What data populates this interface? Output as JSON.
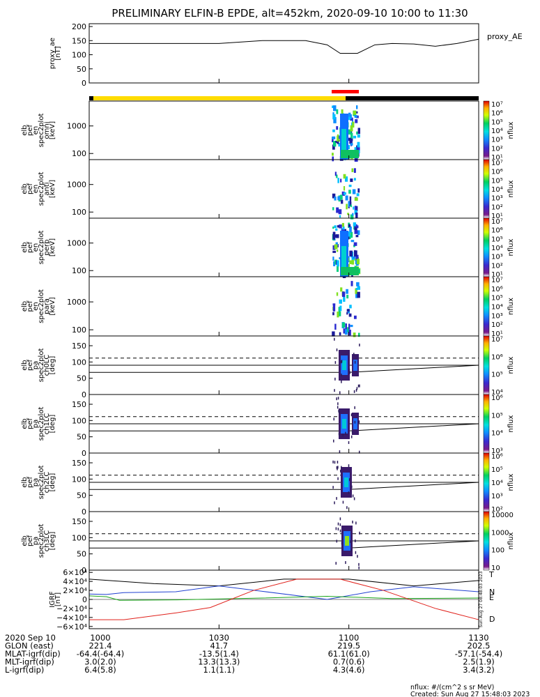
{
  "title": "PRELIMINARY ELFIN-B EPDE, alt=452km, 2020-09-10 10:00 to 11:30",
  "chart_data": [
    {
      "type": "line",
      "id": "proxy_ae",
      "ylabel_lines": [
        "proxy_ae",
        "[nT]"
      ],
      "yticks": [
        "0",
        "50",
        "100",
        "150",
        "200"
      ],
      "ylim": [
        0,
        210
      ],
      "series": [
        {
          "name": "proxy_AE",
          "color": "#000000",
          "x": [
            0,
            10,
            20,
            30,
            40,
            50,
            55,
            58,
            62,
            66,
            70,
            75,
            80,
            85,
            90
          ],
          "y": [
            140,
            140,
            140,
            140,
            150,
            150,
            135,
            105,
            105,
            135,
            140,
            138,
            130,
            140,
            155
          ]
        }
      ]
    },
    {
      "type": "heatmap",
      "id": "omni",
      "ylabel_lines": [
        "elb",
        "pef",
        "en",
        "spec2plot",
        "omni",
        "[keV]"
      ],
      "yticks": [
        "100",
        "1000"
      ],
      "colorbar": {
        "labels": [
          "10¹",
          "10²",
          "10³",
          "10⁴",
          "10⁵",
          "10⁶",
          "10⁷"
        ],
        "unit": "nflux"
      }
    },
    {
      "type": "heatmap",
      "id": "anti",
      "ylabel_lines": [
        "elb",
        "pef",
        "en",
        "spec2plot",
        "anti",
        "[keV]"
      ],
      "yticks": [
        "100",
        "1000"
      ],
      "colorbar": {
        "labels": [
          "10¹",
          "10²",
          "10³",
          "10⁴",
          "10⁵",
          "10⁶",
          "10⁷"
        ],
        "unit": "nflux"
      }
    },
    {
      "type": "heatmap",
      "id": "perp",
      "ylabel_lines": [
        "elb",
        "pef",
        "en",
        "spec2plot",
        "perp",
        "[keV]"
      ],
      "yticks": [
        "100",
        "1000"
      ],
      "colorbar": {
        "labels": [
          "10¹",
          "10²",
          "10³",
          "10⁴",
          "10⁵",
          "10⁶",
          "10⁷"
        ],
        "unit": "nflux"
      }
    },
    {
      "type": "heatmap",
      "id": "para",
      "ylabel_lines": [
        "elb",
        "pef",
        "en",
        "spec2plot",
        "para",
        "[keV]"
      ],
      "yticks": [
        "100",
        "1000"
      ],
      "colorbar": {
        "labels": [
          "10¹",
          "10²",
          "10³",
          "10⁴",
          "10⁵",
          "10⁶",
          "10⁷"
        ],
        "unit": "nflux"
      }
    },
    {
      "type": "heatmap",
      "id": "ch0LC",
      "ylabel_lines": [
        "elb",
        "pef",
        "pa",
        "spec2plot",
        "ch0LC",
        "[deg]"
      ],
      "yticks": [
        "0",
        "50",
        "100",
        "150"
      ],
      "colorbar": {
        "labels": [
          "10⁴",
          "10⁵",
          "10⁶",
          "10⁷"
        ],
        "unit": "nflux"
      }
    },
    {
      "type": "heatmap",
      "id": "ch1LC",
      "ylabel_lines": [
        "elb",
        "pef",
        "pa",
        "spec2plot",
        "ch1LC",
        "[deg]"
      ],
      "yticks": [
        "0",
        "50",
        "100",
        "150"
      ],
      "colorbar": {
        "labels": [
          "10³",
          "10⁴",
          "10⁵",
          "10⁶"
        ],
        "unit": "nflux"
      }
    },
    {
      "type": "heatmap",
      "id": "ch2LC",
      "ylabel_lines": [
        "elb",
        "pef",
        "pa",
        "spec2plot",
        "ch2LC",
        "[deg]"
      ],
      "yticks": [
        "0",
        "50",
        "100",
        "150"
      ],
      "colorbar": {
        "labels": [
          "10²",
          "10³",
          "10⁴",
          "10⁵",
          "10⁶"
        ],
        "unit": "nflux"
      }
    },
    {
      "type": "heatmap",
      "id": "ch3LC",
      "ylabel_lines": [
        "elb",
        "pef",
        "pa",
        "spec2plot",
        "ch3LC",
        "[deg]"
      ],
      "yticks": [
        "0",
        "50",
        "100",
        "150"
      ],
      "colorbar": {
        "labels": [
          "10",
          "100",
          "1000",
          "10000"
        ],
        "unit": "nflux"
      }
    },
    {
      "type": "line",
      "id": "igrf",
      "ylabel_lines": [
        "IGRF",
        "[nT]"
      ],
      "yticks": [
        "−6×10⁴",
        "−4×10⁴",
        "−2×10⁴",
        "0",
        "2×10⁴",
        "4×10⁴",
        "6×10⁴"
      ],
      "side_note": "Sun Aug 27 08:48:03 2023",
      "series": [
        {
          "name": "T",
          "color": "#000000"
        },
        {
          "name": "N",
          "color": "#1f3fd0"
        },
        {
          "name": "E",
          "color": "#1aa51a"
        },
        {
          "name": "D",
          "color": "#e0201a"
        }
      ]
    }
  ],
  "xaxis": {
    "tick_labels": [
      "1000",
      "1030",
      "1100",
      "1130"
    ],
    "rows": [
      {
        "label": "2020 Sep 10",
        "values": [
          "1000",
          "1030",
          "1100",
          "1130"
        ]
      },
      {
        "label": "GLON (east)",
        "values": [
          "221.4",
          "41.7",
          "219.5",
          "202.5"
        ]
      },
      {
        "label": "MLAT-igrf(dip)",
        "values": [
          "-64.4(-64.4)",
          "-13.5(1.4)",
          "61.1(61.0)",
          "-57.1(-54.4)"
        ]
      },
      {
        "label": "MLT-igrf(dip)",
        "values": [
          "3.0(2.0)",
          "13.3(13.3)",
          "0.7(0.6)",
          "2.5(1.9)"
        ]
      },
      {
        "label": "L-igrf(dip)",
        "values": [
          "6.4(5.8)",
          "1.1(1.1)",
          "4.3(4.6)",
          "3.4(3.2)"
        ]
      }
    ]
  },
  "footer": {
    "units": "nflux: #/(cm^2 s sr MeV)",
    "created": "Created: Sun Aug 27 15:48:03 2023"
  },
  "colors": {
    "bar_yellow": "#ffdc00",
    "bar_black": "#000000",
    "bar_red": "#ff0000"
  }
}
